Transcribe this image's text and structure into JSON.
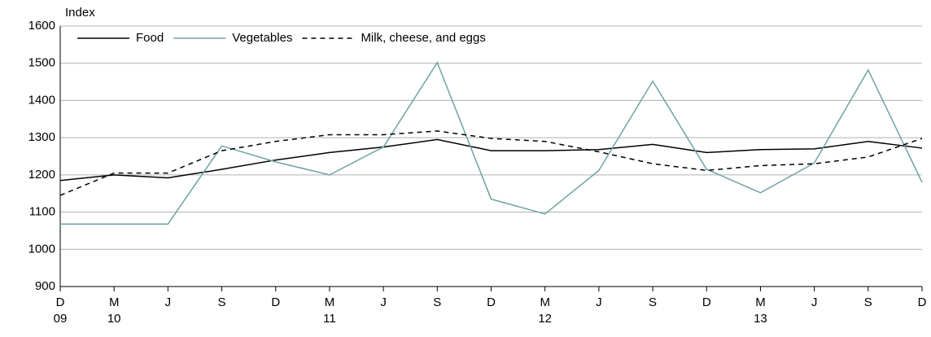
{
  "chart_data": {
    "type": "line",
    "y_axis_label": "Index",
    "categories": [
      "D",
      "M",
      "J",
      "S",
      "D",
      "M",
      "J",
      "S",
      "D",
      "M",
      "J",
      "S",
      "D",
      "M",
      "J",
      "S",
      "D"
    ],
    "year_labels": [
      "09",
      "10",
      null,
      null,
      null,
      "11",
      null,
      null,
      null,
      "12",
      null,
      null,
      null,
      "13",
      null,
      null,
      null
    ],
    "series": [
      {
        "name": "Food",
        "color": "#000000",
        "dash": "solid",
        "values": [
          1185,
          1200,
          1192,
          1215,
          1240,
          1260,
          1275,
          1295,
          1265,
          1265,
          1268,
          1282,
          1260,
          1268,
          1270,
          1290,
          1272
        ]
      },
      {
        "name": "Vegetables",
        "color": "#6fa3a3",
        "dash": "solid",
        "values": [
          1068,
          1068,
          1068,
          1278,
          1235,
          1200,
          1275,
          1502,
          1135,
          1095,
          1212,
          1452,
          1215,
          1152,
          1232,
          1482,
          1180
        ]
      },
      {
        "name": "Milk, cheese, and eggs",
        "color": "#000000",
        "dash": "dashed",
        "values": [
          1145,
          1205,
          1205,
          1265,
          1290,
          1308,
          1308,
          1318,
          1298,
          1290,
          1262,
          1230,
          1212,
          1225,
          1230,
          1248,
          1298
        ]
      }
    ],
    "ylim": [
      900,
      1600
    ],
    "yticks": [
      900,
      1000,
      1100,
      1200,
      1300,
      1400,
      1500,
      1600
    ],
    "grid": true,
    "legend": "top-left"
  }
}
